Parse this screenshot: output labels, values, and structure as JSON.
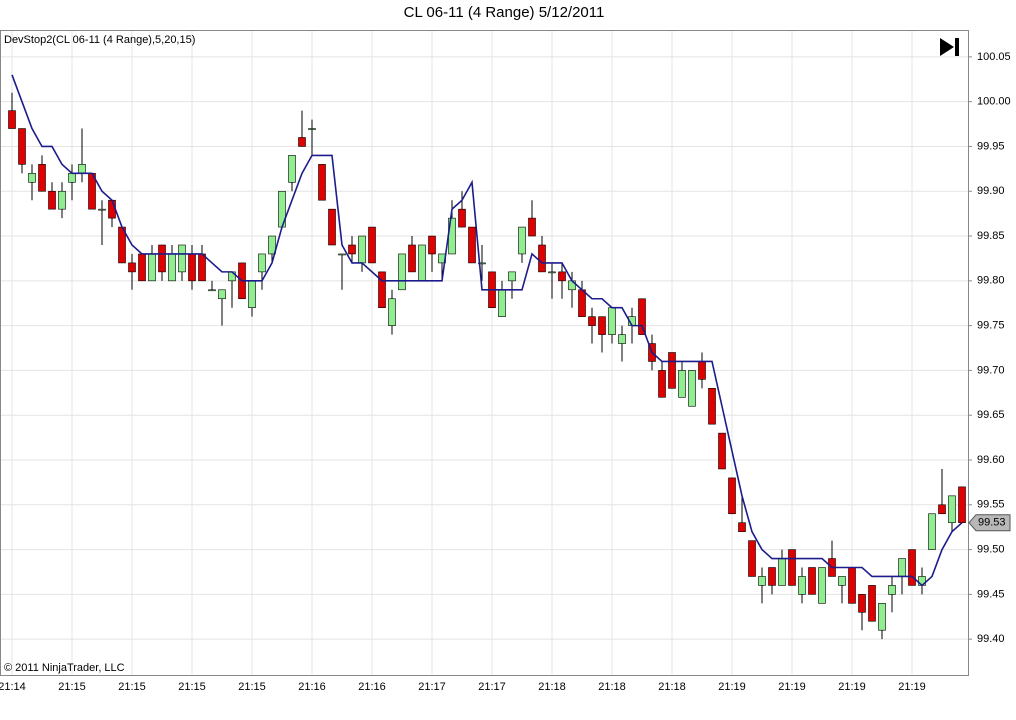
{
  "chart_data": {
    "type": "candlestick",
    "title": "CL 06-11 (4 Range)  5/12/2011",
    "indicator_label": "DevStop2(CL 06-11 (4 Range),5,20,15)",
    "copyright": "© 2011 NinjaTrader, LLC",
    "categories": [
      "21:14",
      null,
      null,
      null,
      null,
      null,
      "21:15",
      null,
      null,
      null,
      null,
      null,
      "21:15",
      null,
      null,
      null,
      null,
      null,
      "21:15",
      null,
      null,
      null,
      null,
      null,
      "21:15",
      null,
      null,
      null,
      null,
      null,
      "21:16",
      null,
      null,
      null,
      null,
      null,
      "21:16",
      null,
      null,
      null,
      null,
      null,
      "21:17",
      null,
      null,
      null,
      null,
      null,
      "21:17",
      null,
      null,
      null,
      null,
      null,
      "21:18",
      null,
      null,
      null,
      null,
      null,
      "21:18",
      null,
      null,
      null,
      null,
      null,
      "21:18",
      null,
      null,
      null,
      null,
      null,
      "21:19",
      null,
      null,
      null,
      null,
      null,
      "21:19",
      null,
      null,
      null,
      null,
      null,
      "21:19",
      null,
      null,
      null,
      null,
      null,
      "21:19",
      null,
      null,
      null,
      null,
      null
    ],
    "open": [
      99.99,
      99.97,
      99.91,
      99.93,
      99.9,
      99.88,
      99.91,
      99.92,
      99.92,
      99.88,
      99.89,
      99.86,
      99.82,
      99.83,
      99.8,
      99.84,
      99.8,
      99.81,
      99.83,
      99.83,
      99.79,
      99.78,
      99.8,
      99.82,
      99.77,
      99.81,
      99.83,
      99.86,
      99.91,
      99.96,
      99.97,
      99.93,
      99.88,
      99.83,
      99.84,
      99.82,
      99.86,
      99.81,
      99.75,
      99.79,
      99.84,
      99.8,
      99.85,
      99.82,
      99.83,
      99.88,
      99.86,
      99.82,
      99.81,
      99.76,
      99.8,
      99.83,
      99.87,
      99.84,
      99.81,
      99.81,
      99.79,
      99.79,
      99.76,
      99.76,
      99.74,
      99.73,
      99.75,
      99.78,
      99.73,
      99.7,
      99.72,
      99.67,
      99.66,
      99.71,
      99.68,
      99.63,
      99.58,
      99.53,
      99.51,
      99.46,
      99.48,
      99.46,
      99.5,
      99.45,
      99.48,
      99.44,
      99.49,
      99.46,
      99.48,
      99.45,
      99.46,
      99.41,
      99.45,
      99.47,
      99.5,
      99.46,
      99.5,
      99.55,
      99.53,
      99.57
    ],
    "high": [
      100.01,
      99.97,
      99.93,
      99.94,
      99.91,
      99.91,
      99.93,
      99.97,
      99.92,
      99.89,
      99.89,
      99.86,
      99.83,
      99.83,
      99.84,
      99.84,
      99.84,
      99.84,
      99.84,
      99.84,
      99.8,
      99.79,
      99.81,
      99.82,
      99.8,
      99.83,
      99.85,
      99.9,
      99.94,
      99.99,
      99.98,
      99.93,
      99.88,
      99.83,
      99.85,
      99.85,
      99.86,
      99.81,
      99.79,
      99.83,
      99.85,
      99.84,
      99.85,
      99.83,
      99.89,
      99.9,
      99.86,
      99.84,
      99.81,
      99.8,
      99.81,
      99.86,
      99.89,
      99.85,
      99.82,
      99.82,
      99.81,
      99.8,
      99.77,
      99.76,
      99.77,
      99.75,
      99.77,
      99.78,
      99.74,
      99.71,
      99.72,
      99.71,
      99.7,
      99.72,
      99.68,
      99.63,
      99.58,
      99.56,
      99.51,
      99.48,
      99.48,
      99.5,
      99.5,
      99.48,
      99.48,
      99.48,
      99.51,
      99.47,
      99.48,
      99.45,
      99.46,
      99.44,
      99.47,
      99.49,
      99.5,
      99.48,
      99.54,
      99.59,
      99.56,
      99.57
    ],
    "low": [
      99.97,
      99.92,
      99.89,
      99.9,
      99.88,
      99.87,
      99.89,
      99.91,
      99.88,
      99.84,
      99.86,
      99.82,
      99.79,
      99.8,
      99.8,
      99.8,
      99.8,
      99.8,
      99.79,
      99.8,
      99.79,
      99.75,
      99.77,
      99.78,
      99.76,
      99.79,
      99.82,
      99.86,
      99.9,
      99.95,
      99.94,
      99.89,
      99.84,
      99.79,
      99.82,
      99.81,
      99.82,
      99.77,
      99.74,
      99.79,
      99.81,
      99.8,
      99.81,
      99.8,
      99.83,
      99.86,
      99.82,
      99.8,
      99.77,
      99.76,
      99.78,
      99.82,
      99.85,
      99.81,
      99.78,
      99.78,
      99.77,
      99.76,
      99.73,
      99.72,
      99.73,
      99.71,
      99.73,
      99.74,
      99.7,
      99.67,
      99.68,
      99.67,
      99.66,
      99.68,
      99.64,
      99.59,
      99.54,
      99.52,
      99.47,
      99.44,
      99.45,
      99.46,
      99.46,
      99.44,
      99.45,
      99.44,
      99.47,
      99.44,
      99.44,
      99.41,
      99.42,
      99.4,
      99.43,
      99.45,
      99.46,
      99.45,
      99.5,
      99.54,
      99.52,
      99.53
    ],
    "close": [
      99.97,
      99.93,
      99.92,
      99.9,
      99.88,
      99.9,
      99.92,
      99.93,
      99.88,
      99.88,
      99.87,
      99.82,
      99.81,
      99.8,
      99.83,
      99.81,
      99.83,
      99.84,
      99.8,
      99.8,
      99.79,
      99.79,
      99.81,
      99.78,
      99.8,
      99.83,
      99.85,
      99.9,
      99.94,
      99.95,
      99.97,
      99.89,
      99.84,
      99.83,
      99.83,
      99.85,
      99.82,
      99.77,
      99.78,
      99.83,
      99.81,
      99.84,
      99.83,
      99.83,
      99.87,
      99.86,
      99.82,
      99.82,
      99.77,
      99.79,
      99.81,
      99.86,
      99.85,
      99.81,
      99.81,
      99.8,
      99.8,
      99.76,
      99.75,
      99.74,
      99.77,
      99.74,
      99.76,
      99.74,
      99.71,
      99.67,
      99.68,
      99.7,
      99.7,
      99.69,
      99.64,
      99.59,
      99.54,
      99.52,
      99.47,
      99.47,
      99.46,
      99.49,
      99.46,
      99.47,
      99.45,
      99.48,
      99.47,
      99.47,
      99.44,
      99.43,
      99.42,
      99.44,
      99.46,
      99.49,
      99.46,
      99.47,
      99.54,
      99.54,
      99.56,
      99.53
    ],
    "stop": [
      100.03,
      100.0,
      99.97,
      99.95,
      99.95,
      99.93,
      99.92,
      99.92,
      99.92,
      99.9,
      99.89,
      99.86,
      99.84,
      99.83,
      99.83,
      99.83,
      99.83,
      99.83,
      99.83,
      99.83,
      99.82,
      99.81,
      99.81,
      99.8,
      99.8,
      99.8,
      99.82,
      99.86,
      99.89,
      99.92,
      99.94,
      99.94,
      99.94,
      99.84,
      99.82,
      99.82,
      99.81,
      99.8,
      99.8,
      99.8,
      99.8,
      99.8,
      99.8,
      99.8,
      99.88,
      99.89,
      99.91,
      99.79,
      99.79,
      99.79,
      99.79,
      99.79,
      99.83,
      99.82,
      99.82,
      99.82,
      99.8,
      99.79,
      99.78,
      99.78,
      99.77,
      99.77,
      99.75,
      99.75,
      99.72,
      99.71,
      99.71,
      99.71,
      99.71,
      99.71,
      99.71,
      99.66,
      99.61,
      99.56,
      99.52,
      99.5,
      99.49,
      99.49,
      99.49,
      99.49,
      99.49,
      99.49,
      99.48,
      99.48,
      99.48,
      99.48,
      99.47,
      99.47,
      99.47,
      99.47,
      99.47,
      99.46,
      99.47,
      99.5,
      99.52,
      99.53
    ],
    "up_color": "#90ee90",
    "down_color": "#e00000",
    "line_color": "#1c1c8c",
    "ylim": [
      99.36,
      100.08
    ],
    "yticks": [
      {
        "value": 99.4,
        "label": "99.40"
      },
      99.45,
      {
        "value": 99.5,
        "label": "99.50"
      },
      99.55,
      {
        "value": 99.6,
        "label": "99.60"
      },
      99.65,
      {
        "value": 99.7,
        "label": "99.70"
      },
      99.75,
      {
        "value": 99.8,
        "label": "99.80"
      },
      99.85,
      {
        "value": 99.9,
        "label": "99.90"
      },
      99.95,
      {
        "value": 100,
        "label": "100.00"
      },
      100.05
    ],
    "grid": true
  }
}
